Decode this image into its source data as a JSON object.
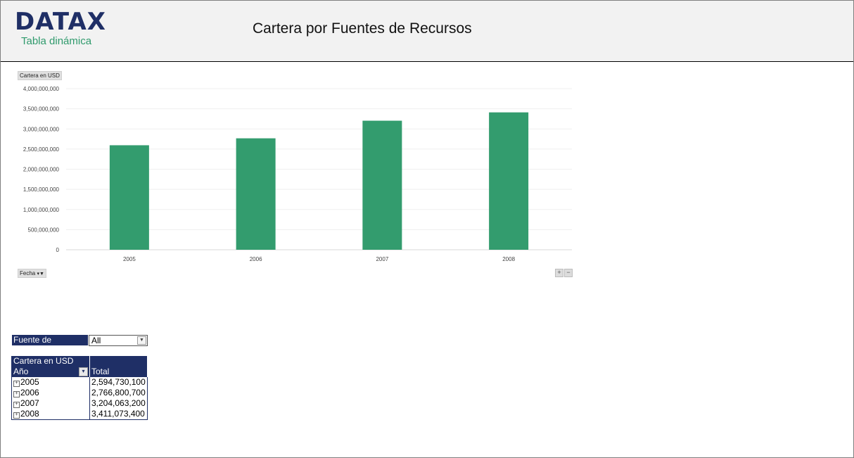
{
  "header": {
    "logo_text": "DATAX",
    "logo_sub": "Tabla dinámica",
    "title": "Cartera por Fuentes de Recursos"
  },
  "chart_controls": {
    "value_field": "Cartera en USD",
    "axis_field": "Fecha",
    "zoom_in": "+",
    "zoom_out": "−"
  },
  "chart_data": {
    "type": "bar",
    "categories": [
      "2005",
      "2006",
      "2007",
      "2008"
    ],
    "values": [
      2594730100,
      2766800700,
      3204063200,
      3411073400
    ],
    "ylim": [
      0,
      4000000000
    ],
    "yticks": [
      "0",
      "500,000,000",
      "1,000,000,000",
      "1,500,000,000",
      "2,000,000,000",
      "2,500,000,000",
      "3,000,000,000",
      "3,500,000,000",
      "4,000,000,000"
    ],
    "title": "",
    "xlabel": "",
    "ylabel": "",
    "bar_color": "#339c6e",
    "grid": true,
    "legend": "none"
  },
  "filter": {
    "label": "Fuente de Recursos",
    "value": "All"
  },
  "pivot": {
    "header": "Cartera en USD",
    "row_label": "Año",
    "col_label": "Total",
    "rows": [
      {
        "year": "2005",
        "total": "2,594,730,100"
      },
      {
        "year": "2006",
        "total": "2,766,800,700"
      },
      {
        "year": "2007",
        "total": "3,204,063,200"
      },
      {
        "year": "2008",
        "total": "3,411,073,400"
      }
    ]
  },
  "colors": {
    "navy": "#1f2f66",
    "green": "#339c6e",
    "header_bg": "#f2f2f2"
  }
}
